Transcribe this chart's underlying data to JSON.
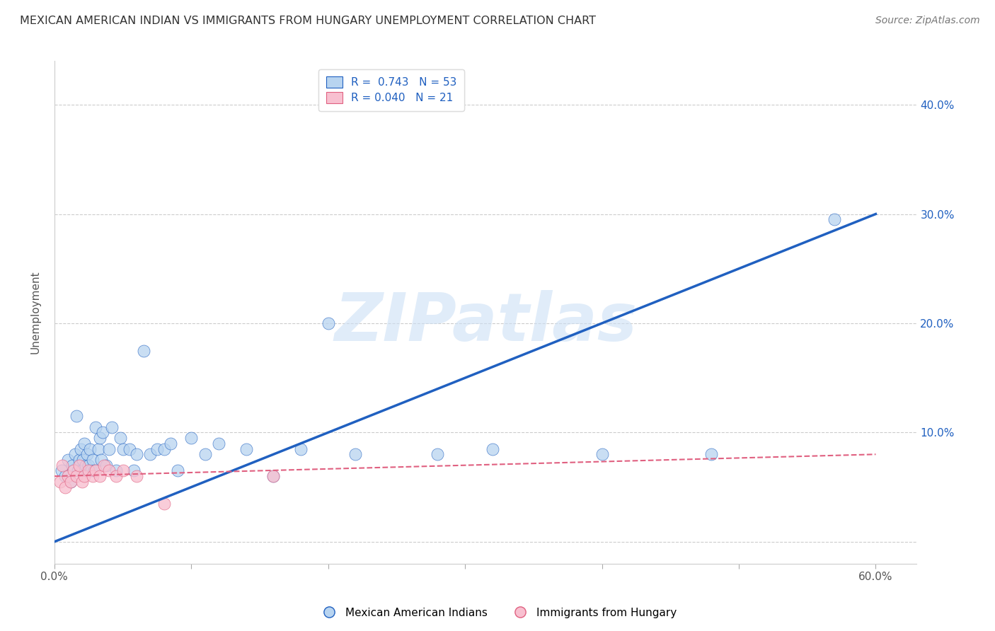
{
  "title": "MEXICAN AMERICAN INDIAN VS IMMIGRANTS FROM HUNGARY UNEMPLOYMENT CORRELATION CHART",
  "source": "Source: ZipAtlas.com",
  "ylabel": "Unemployment",
  "xlim": [
    0.0,
    0.63
  ],
  "ylim": [
    -0.02,
    0.44
  ],
  "yticks": [
    0.0,
    0.1,
    0.2,
    0.3,
    0.4
  ],
  "ytick_labels": [
    "",
    "10.0%",
    "20.0%",
    "30.0%",
    "40.0%"
  ],
  "xtick_positions": [
    0.0,
    0.1,
    0.2,
    0.3,
    0.4,
    0.5,
    0.6
  ],
  "xtick_labels": [
    "0.0%",
    "",
    "",
    "",
    "",
    "",
    "60.0%"
  ],
  "watermark_text": "ZIPatlas",
  "blue_R": 0.743,
  "blue_N": 53,
  "pink_R": 0.04,
  "pink_N": 21,
  "blue_fill_color": "#b8d4f0",
  "blue_line_color": "#2060c0",
  "pink_fill_color": "#f8c0d0",
  "pink_line_color": "#e06080",
  "legend_blue_label": "Mexican American Indians",
  "legend_pink_label": "Immigrants from Hungary",
  "blue_scatter_x": [
    0.005,
    0.008,
    0.01,
    0.012,
    0.013,
    0.015,
    0.016,
    0.017,
    0.018,
    0.019,
    0.02,
    0.021,
    0.022,
    0.023,
    0.024,
    0.025,
    0.026,
    0.027,
    0.028,
    0.029,
    0.03,
    0.032,
    0.033,
    0.034,
    0.035,
    0.038,
    0.04,
    0.042,
    0.045,
    0.048,
    0.05,
    0.055,
    0.058,
    0.06,
    0.065,
    0.07,
    0.075,
    0.08,
    0.085,
    0.09,
    0.1,
    0.11,
    0.12,
    0.14,
    0.16,
    0.18,
    0.2,
    0.22,
    0.28,
    0.32,
    0.4,
    0.48,
    0.57
  ],
  "blue_scatter_y": [
    0.065,
    0.06,
    0.075,
    0.055,
    0.07,
    0.08,
    0.115,
    0.065,
    0.075,
    0.085,
    0.065,
    0.075,
    0.09,
    0.07,
    0.08,
    0.07,
    0.085,
    0.065,
    0.075,
    0.065,
    0.105,
    0.085,
    0.095,
    0.075,
    0.1,
    0.07,
    0.085,
    0.105,
    0.065,
    0.095,
    0.085,
    0.085,
    0.065,
    0.08,
    0.175,
    0.08,
    0.085,
    0.085,
    0.09,
    0.065,
    0.095,
    0.08,
    0.09,
    0.085,
    0.06,
    0.085,
    0.2,
    0.08,
    0.08,
    0.085,
    0.08,
    0.08,
    0.295
  ],
  "pink_scatter_x": [
    0.004,
    0.006,
    0.008,
    0.01,
    0.012,
    0.014,
    0.016,
    0.018,
    0.02,
    0.022,
    0.025,
    0.028,
    0.03,
    0.033,
    0.036,
    0.04,
    0.045,
    0.05,
    0.06,
    0.08,
    0.16
  ],
  "pink_scatter_y": [
    0.055,
    0.07,
    0.05,
    0.06,
    0.055,
    0.065,
    0.06,
    0.07,
    0.055,
    0.06,
    0.065,
    0.06,
    0.065,
    0.06,
    0.07,
    0.065,
    0.06,
    0.065,
    0.06,
    0.035,
    0.06
  ],
  "blue_line_x": [
    0.0,
    0.6
  ],
  "blue_line_y": [
    0.0,
    0.3
  ],
  "pink_line_x": [
    0.0,
    0.6
  ],
  "pink_line_y": [
    0.06,
    0.08
  ],
  "grid_color": "#cccccc",
  "background_color": "#ffffff",
  "title_fontsize": 11.5,
  "axis_label_fontsize": 11,
  "tick_fontsize": 11,
  "legend_fontsize": 11,
  "source_fontsize": 10
}
